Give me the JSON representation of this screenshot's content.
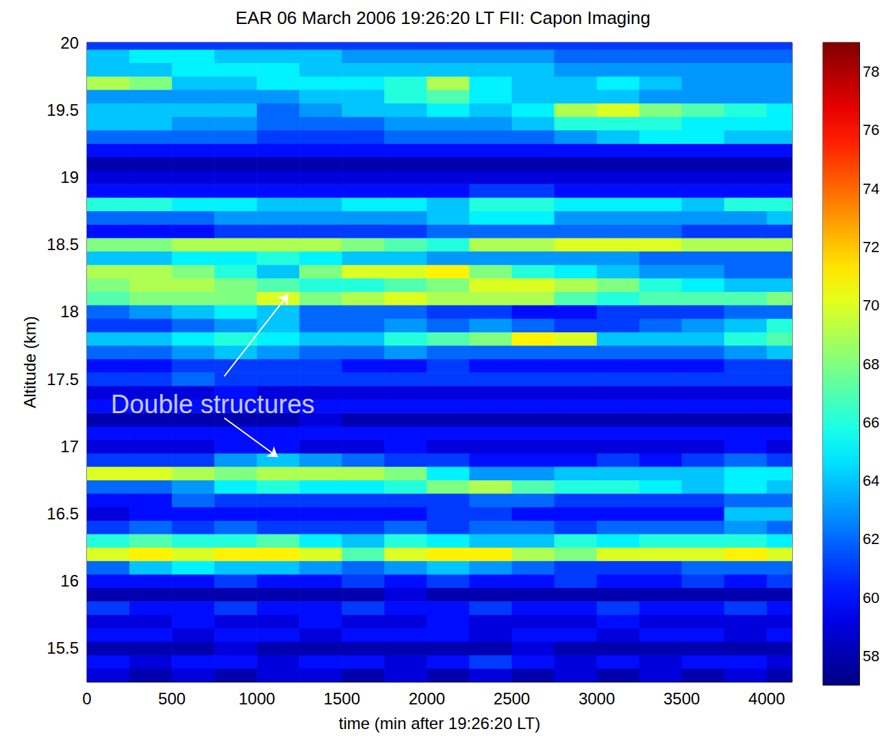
{
  "chart_data": {
    "type": "heatmap",
    "title": "EAR 06 March 2006 19:26:20 LT FII: Capon Imaging",
    "x_label": "time (min after 19:26:20 LT)",
    "y_label": "Altitude (km)",
    "xlim": [
      0,
      4150
    ],
    "ylim": [
      15.25,
      20
    ],
    "xticks": [
      0,
      500,
      1000,
      1500,
      2000,
      2500,
      3000,
      3500,
      4000
    ],
    "yticks": [
      15.5,
      16,
      16.5,
      17,
      17.5,
      18,
      18.5,
      19,
      19.5,
      20
    ],
    "grid": false,
    "colorbar": {
      "range": [
        57,
        79
      ],
      "ticks": [
        58,
        60,
        62,
        64,
        66,
        68,
        70,
        72,
        74,
        76,
        78
      ]
    },
    "x": [
      125,
      375,
      625,
      875,
      1125,
      1375,
      1625,
      1875,
      2125,
      2375,
      2625,
      2875,
      3125,
      3375,
      3625,
      3875,
      4125
    ],
    "y": [
      15.3,
      15.4,
      15.5,
      15.6,
      15.7,
      15.8,
      15.9,
      16.0,
      16.1,
      16.2,
      16.3,
      16.4,
      16.5,
      16.6,
      16.7,
      16.8,
      16.9,
      17.0,
      17.1,
      17.2,
      17.3,
      17.4,
      17.5,
      17.6,
      17.7,
      17.8,
      17.9,
      18.0,
      18.1,
      18.2,
      18.3,
      18.4,
      18.5,
      18.6,
      18.7,
      18.8,
      18.9,
      19.0,
      19.1,
      19.2,
      19.3,
      19.4,
      19.5,
      19.6,
      19.7,
      19.8,
      19.9,
      20.0
    ],
    "cells": [
      [
        59,
        58,
        59,
        58,
        59,
        59,
        58,
        59,
        58,
        59,
        58,
        59,
        58,
        59,
        58,
        59,
        58
      ],
      [
        60,
        59,
        60,
        60,
        59,
        60,
        60,
        59,
        60,
        61,
        60,
        59,
        60,
        59,
        60,
        60,
        59
      ],
      [
        58,
        58,
        58,
        59,
        58,
        58,
        58,
        58,
        58,
        58,
        59,
        58,
        58,
        58,
        58,
        58,
        58
      ],
      [
        60,
        60,
        59,
        60,
        60,
        59,
        60,
        60,
        60,
        59,
        60,
        60,
        59,
        60,
        60,
        59,
        60
      ],
      [
        59,
        59,
        60,
        59,
        59,
        60,
        59,
        59,
        60,
        59,
        59,
        59,
        60,
        59,
        59,
        59,
        59
      ],
      [
        61,
        60,
        60,
        61,
        60,
        60,
        61,
        60,
        60,
        61,
        60,
        60,
        61,
        60,
        60,
        61,
        60
      ],
      [
        58,
        58,
        58,
        58,
        58,
        58,
        58,
        59,
        58,
        58,
        58,
        58,
        58,
        58,
        58,
        58,
        58
      ],
      [
        60,
        60,
        60,
        61,
        60,
        60,
        61,
        60,
        61,
        60,
        60,
        61,
        60,
        60,
        61,
        60,
        61
      ],
      [
        62,
        64,
        65,
        64,
        64,
        63,
        62,
        63,
        64,
        63,
        62,
        61,
        61,
        61,
        62,
        62,
        62
      ],
      [
        70,
        71,
        70,
        71,
        71,
        70,
        67,
        70,
        71,
        71,
        69,
        68,
        70,
        70,
        70,
        71,
        70
      ],
      [
        66,
        67,
        66,
        66,
        67,
        65,
        64,
        66,
        65,
        64,
        64,
        66,
        65,
        66,
        66,
        66,
        65
      ],
      [
        61,
        62,
        61,
        62,
        61,
        61,
        61,
        62,
        61,
        62,
        62,
        61,
        62,
        62,
        62,
        63,
        62
      ],
      [
        59,
        60,
        60,
        60,
        60,
        60,
        60,
        60,
        61,
        61,
        60,
        60,
        60,
        60,
        60,
        64,
        64
      ],
      [
        60,
        60,
        62,
        61,
        61,
        61,
        61,
        61,
        61,
        62,
        62,
        61,
        61,
        61,
        61,
        62,
        62
      ],
      [
        62,
        62,
        63,
        65,
        66,
        65,
        65,
        66,
        68,
        69,
        67,
        66,
        66,
        65,
        64,
        65,
        64
      ],
      [
        70,
        70,
        69,
        68,
        69,
        69,
        69,
        68,
        65,
        63,
        63,
        64,
        64,
        64,
        64,
        65,
        65
      ],
      [
        61,
        61,
        61,
        63,
        64,
        63,
        62,
        61,
        61,
        60,
        60,
        60,
        61,
        60,
        61,
        62,
        61
      ],
      [
        59,
        59,
        59,
        60,
        60,
        59,
        59,
        60,
        59,
        59,
        59,
        59,
        59,
        59,
        59,
        60,
        59
      ],
      [
        60,
        60,
        60,
        60,
        60,
        60,
        60,
        60,
        60,
        60,
        60,
        60,
        60,
        60,
        60,
        60,
        60
      ],
      [
        58,
        58,
        58,
        58,
        58,
        59,
        58,
        58,
        58,
        58,
        58,
        58,
        58,
        58,
        58,
        58,
        58
      ],
      [
        60,
        60,
        60,
        60,
        60,
        60,
        60,
        60,
        60,
        60,
        60,
        60,
        60,
        60,
        60,
        60,
        60
      ],
      [
        59,
        59,
        59,
        60,
        59,
        59,
        59,
        59,
        59,
        59,
        59,
        59,
        59,
        59,
        59,
        59,
        59
      ],
      [
        61,
        61,
        62,
        61,
        61,
        61,
        61,
        61,
        61,
        61,
        61,
        61,
        61,
        61,
        61,
        61,
        61
      ],
      [
        60,
        60,
        61,
        61,
        61,
        61,
        60,
        60,
        61,
        60,
        60,
        60,
        60,
        60,
        60,
        61,
        61
      ],
      [
        62,
        62,
        63,
        64,
        63,
        62,
        62,
        63,
        62,
        62,
        62,
        62,
        62,
        62,
        62,
        63,
        64
      ],
      [
        64,
        64,
        65,
        66,
        65,
        64,
        64,
        66,
        67,
        68,
        71,
        70,
        64,
        64,
        64,
        66,
        67
      ],
      [
        61,
        61,
        62,
        63,
        64,
        62,
        62,
        63,
        62,
        63,
        62,
        61,
        61,
        62,
        63,
        64,
        66
      ],
      [
        62,
        63,
        64,
        65,
        64,
        62,
        62,
        62,
        61,
        61,
        60,
        60,
        61,
        61,
        61,
        62,
        62
      ],
      [
        67,
        68,
        68,
        68,
        70,
        68,
        69,
        70,
        69,
        69,
        69,
        67,
        66,
        67,
        67,
        67,
        68
      ],
      [
        68,
        69,
        69,
        68,
        67,
        66,
        66,
        67,
        68,
        70,
        70,
        69,
        68,
        66,
        65,
        64,
        64
      ],
      [
        69,
        69,
        68,
        66,
        64,
        68,
        70,
        70,
        71,
        68,
        66,
        65,
        64,
        63,
        63,
        62,
        62
      ],
      [
        64,
        64,
        65,
        65,
        66,
        65,
        64,
        64,
        63,
        63,
        63,
        63,
        63,
        62,
        62,
        62,
        62
      ],
      [
        68,
        68,
        69,
        69,
        69,
        69,
        68,
        67,
        66,
        69,
        69,
        70,
        70,
        70,
        69,
        69,
        69
      ],
      [
        60,
        60,
        60,
        61,
        61,
        61,
        61,
        61,
        62,
        62,
        62,
        62,
        62,
        62,
        61,
        61,
        61
      ],
      [
        62,
        62,
        62,
        63,
        63,
        63,
        63,
        63,
        64,
        65,
        65,
        63,
        63,
        63,
        63,
        63,
        64
      ],
      [
        66,
        66,
        65,
        65,
        64,
        64,
        65,
        65,
        64,
        66,
        66,
        65,
        65,
        65,
        64,
        66,
        66
      ],
      [
        60,
        60,
        60,
        60,
        60,
        60,
        60,
        60,
        60,
        61,
        61,
        60,
        60,
        60,
        60,
        60,
        60
      ],
      [
        59,
        59,
        59,
        59,
        59,
        59,
        59,
        59,
        59,
        59,
        59,
        59,
        59,
        59,
        59,
        59,
        59
      ],
      [
        58,
        58,
        58,
        58,
        58,
        58,
        58,
        58,
        58,
        58,
        58,
        58,
        58,
        58,
        58,
        58,
        58
      ],
      [
        60,
        60,
        60,
        60,
        60,
        60,
        60,
        60,
        60,
        60,
        60,
        60,
        60,
        60,
        60,
        60,
        60
      ],
      [
        62,
        62,
        62,
        62,
        61,
        61,
        61,
        62,
        62,
        62,
        62,
        63,
        64,
        65,
        65,
        64,
        64
      ],
      [
        64,
        64,
        63,
        63,
        62,
        62,
        62,
        63,
        63,
        63,
        64,
        66,
        66,
        66,
        65,
        65,
        65
      ],
      [
        64,
        64,
        64,
        64,
        62,
        63,
        64,
        64,
        65,
        64,
        65,
        69,
        70,
        68,
        67,
        66,
        65
      ],
      [
        63,
        63,
        63,
        63,
        63,
        64,
        64,
        66,
        67,
        65,
        64,
        64,
        64,
        63,
        63,
        63,
        63
      ],
      [
        69,
        68,
        64,
        64,
        65,
        65,
        65,
        66,
        69,
        65,
        64,
        64,
        65,
        64,
        63,
        63,
        63
      ],
      [
        64,
        64,
        65,
        65,
        65,
        64,
        64,
        64,
        64,
        64,
        64,
        63,
        63,
        63,
        63,
        63,
        63
      ],
      [
        64,
        65,
        65,
        64,
        64,
        64,
        63,
        63,
        63,
        63,
        63,
        62,
        62,
        62,
        62,
        62,
        62
      ],
      [
        61,
        61,
        61,
        61,
        61,
        61,
        61,
        61,
        61,
        61,
        61,
        61,
        61,
        61,
        61,
        61,
        61
      ]
    ],
    "annotations": [
      {
        "text": "Double structures",
        "x": 140,
        "y": 17.31,
        "arrows": [
          [
            [
              808,
              17.52
            ],
            [
              1185,
              18.13
            ]
          ],
          [
            [
              808,
              17.21
            ],
            [
              1123,
              16.92
            ]
          ]
        ]
      }
    ]
  }
}
